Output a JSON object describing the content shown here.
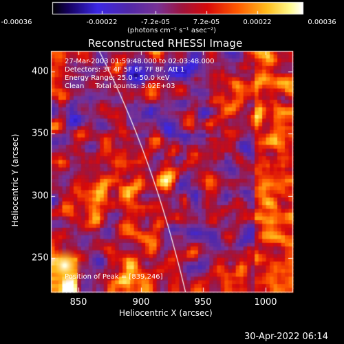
{
  "colorbar": {
    "ticks": [
      "-0.00036",
      "-0.00022",
      "-7.2e-05",
      "7.2e-05",
      "0.00022",
      "0.00036"
    ],
    "units": "(photons cm⁻² s⁻¹ asec⁻²)"
  },
  "title": "Reconstructed RHESSI Image",
  "overlay": {
    "time_range": "27-Mar-2003 01:59:48.000 to 02:03:48.000",
    "detectors": "Detectors: 3F 4F 5F 6F 7F 8F, Att 1",
    "energy": "Energy Range: 25.0 - 50.0 keV",
    "clean": "Clean     Total counts: 3.02E+03",
    "peak": "Position of Peak = [839,246]"
  },
  "axes": {
    "xlabel": "Heliocentric X (arcsec)",
    "ylabel": "Heliocentric Y (arcsec)",
    "xticks": [
      "850",
      "900",
      "950",
      "1000"
    ],
    "yticks": [
      "400",
      "350",
      "300",
      "250"
    ],
    "xrange": [
      828,
      1022
    ],
    "yrange": [
      222,
      416
    ]
  },
  "footer": {
    "date": "30-Apr-2022 06:14"
  },
  "colors": {
    "background": "#000000",
    "text": "#ffffff"
  }
}
